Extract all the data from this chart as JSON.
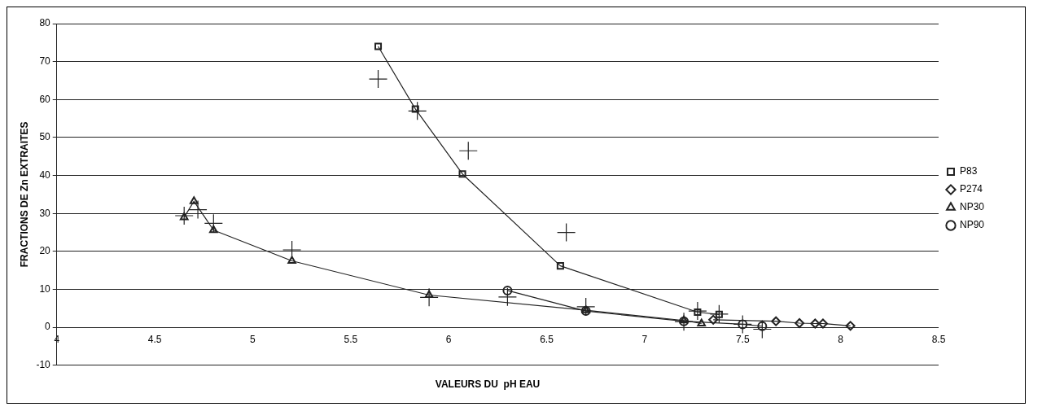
{
  "chart_data": {
    "type": "line",
    "xlabel": "VALEURS DU  pH EAU",
    "ylabel": "FRACTIONS DE Zn EXTRAITES",
    "xlim": [
      4,
      8.5
    ],
    "xticks": [
      4,
      4.5,
      5,
      5.5,
      6,
      6.5,
      7,
      7.5,
      8,
      8.5
    ],
    "ylim": [
      -10,
      80
    ],
    "yticks": [
      -10,
      0,
      10,
      20,
      30,
      40,
      50,
      60,
      70,
      80
    ],
    "grid": "y",
    "legend": "right",
    "series": [
      {
        "name": "P83",
        "color": "#222222",
        "marker": "square",
        "x": [
          5.64,
          5.83,
          6.07,
          6.57,
          7.27,
          7.38
        ],
        "values": [
          74,
          57.5,
          40.4,
          16.2,
          4,
          3.4
        ]
      },
      {
        "name": "P274",
        "color": "#222222",
        "marker": "diamond",
        "x": [
          7.35,
          7.67,
          7.79,
          7.87,
          7.91,
          8.05
        ],
        "values": [
          2,
          1.6,
          1.1,
          1,
          1,
          0.4
        ]
      },
      {
        "name": "NP30",
        "color": "#222222",
        "marker": "triangle",
        "x": [
          4.65,
          4.7,
          4.8,
          5.2,
          5.9,
          6.7,
          7.2,
          7.29
        ],
        "values": [
          29,
          33.2,
          25.6,
          17.5,
          8.5,
          4.5,
          1.8,
          1
        ]
      },
      {
        "name": "NP90",
        "color": "#222222",
        "marker": "circle",
        "x": [
          6.3,
          6.7,
          7.2,
          7.5,
          7.6
        ],
        "values": [
          9.7,
          4.3,
          1.6,
          0.8,
          0.3
        ]
      },
      {
        "type": "scatter",
        "color": "#222222",
        "marker": "cross",
        "x": [
          4.65,
          4.72,
          4.8,
          5.2,
          5.64,
          5.84,
          5.9,
          6.1,
          6.3,
          6.6,
          6.7,
          7.2,
          7.27,
          7.38,
          7.5,
          7.6
        ],
        "values": [
          29.4,
          31,
          27.4,
          20.4,
          65.4,
          57,
          7.9,
          46.5,
          8,
          25,
          5.4,
          1.5,
          4.3,
          3.5,
          0.8,
          -0.5
        ]
      }
    ]
  }
}
